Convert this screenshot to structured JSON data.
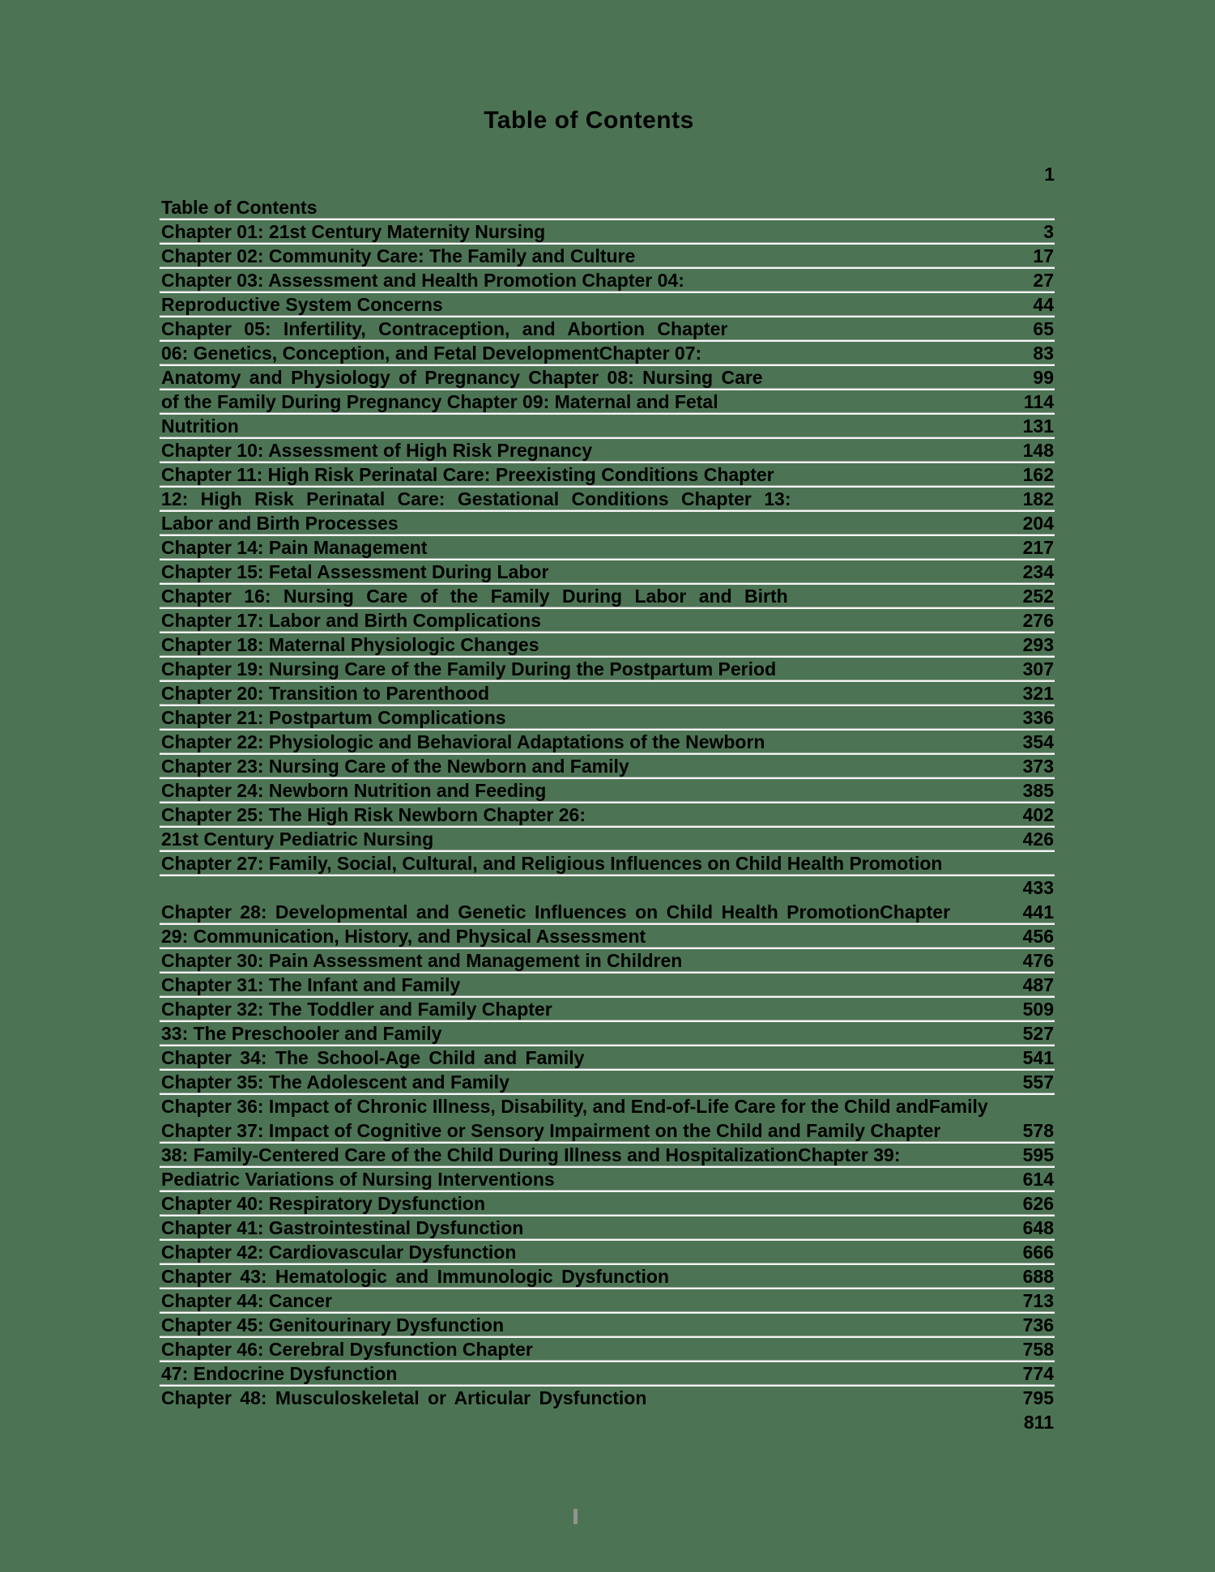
{
  "page": {
    "title": "Table of Contents",
    "top_page_number": "1"
  },
  "colors": {
    "background": "#4c7454",
    "text": "#000000",
    "rule_line": "#f5f7f5",
    "footer_marker": "#8f968f"
  },
  "toc": {
    "rows": [
      {
        "label": "Table of Contents",
        "page": "",
        "underline": true,
        "spacing": "normal"
      },
      {
        "label": "Chapter 01: 21st Century Maternity Nursing",
        "page": "3",
        "underline": true,
        "spacing": "normal"
      },
      {
        "label": "Chapter 02: Community Care: The Family and Culture",
        "page": "17",
        "underline": true,
        "spacing": "normal"
      },
      {
        "label": "Chapter 03: Assessment and Health Promotion Chapter 04:",
        "page": "27",
        "underline": true,
        "spacing": "normal"
      },
      {
        "label": "Reproductive System Concerns",
        "page": "44",
        "underline": true,
        "spacing": "normal"
      },
      {
        "label": "Chapter 05: Infertility, Contraception, and Abortion Chapter",
        "page": "65",
        "underline": true,
        "spacing": "wide"
      },
      {
        "label": "06: Genetics, Conception, and Fetal DevelopmentChapter 07:",
        "page": "83",
        "underline": true,
        "spacing": "normal"
      },
      {
        "label": "Anatomy and Physiology of Pregnancy Chapter 08: Nursing Care",
        "page": "99",
        "underline": true,
        "spacing": "medium"
      },
      {
        "label": "of the Family During Pregnancy Chapter 09: Maternal and Fetal",
        "page": "114",
        "underline": true,
        "spacing": "normal"
      },
      {
        "label": "Nutrition",
        "page": "131",
        "underline": true,
        "spacing": "normal"
      },
      {
        "label": "Chapter 10: Assessment of High Risk Pregnancy",
        "page": "148",
        "underline": true,
        "spacing": "normal"
      },
      {
        "label": "Chapter 11: High Risk Perinatal Care: Preexisting Conditions Chapter",
        "page": "162",
        "underline": true,
        "spacing": "normal"
      },
      {
        "label": "12: High Risk Perinatal Care: Gestational Conditions Chapter 13:",
        "page": "182",
        "underline": true,
        "spacing": "wide"
      },
      {
        "label": "Labor and Birth Processes",
        "page": "204",
        "underline": true,
        "spacing": "normal"
      },
      {
        "label": "Chapter 14: Pain Management",
        "page": "217",
        "underline": true,
        "spacing": "normal"
      },
      {
        "label": "Chapter 15: Fetal Assessment During Labor",
        "page": "234",
        "underline": true,
        "spacing": "normal"
      },
      {
        "label": "Chapter 16: Nursing Care of the Family During Labor and Birth",
        "page": "252",
        "underline": true,
        "spacing": "wide"
      },
      {
        "label": "Chapter 17: Labor and Birth Complications",
        "page": "276",
        "underline": true,
        "spacing": "normal"
      },
      {
        "label": "Chapter 18: Maternal Physiologic Changes",
        "page": "293",
        "underline": true,
        "spacing": "normal"
      },
      {
        "label": "Chapter 19: Nursing Care of the Family During the Postpartum Period",
        "page": "307",
        "underline": true,
        "spacing": "normal"
      },
      {
        "label": "Chapter 20: Transition to Parenthood",
        "page": "321",
        "underline": true,
        "spacing": "normal"
      },
      {
        "label": "Chapter 21: Postpartum Complications",
        "page": "336",
        "underline": true,
        "spacing": "normal"
      },
      {
        "label": "Chapter 22: Physiologic and Behavioral Adaptations of the Newborn",
        "page": "354",
        "underline": true,
        "spacing": "normal"
      },
      {
        "label": "Chapter 23: Nursing Care of the Newborn and Family",
        "page": "373",
        "underline": true,
        "spacing": "normal"
      },
      {
        "label": "Chapter 24: Newborn Nutrition and Feeding",
        "page": "385",
        "underline": true,
        "spacing": "normal"
      },
      {
        "label": "Chapter 25: The High Risk Newborn Chapter 26:",
        "page": "402",
        "underline": true,
        "spacing": "normal"
      },
      {
        "label": "21st Century Pediatric Nursing",
        "page": "426",
        "underline": true,
        "spacing": "normal"
      },
      {
        "label": "Chapter 27: Family, Social, Cultural, and Religious Influences on Child Health Promotion",
        "page": "",
        "underline": true,
        "spacing": "normal"
      },
      {
        "label": "",
        "page": "433",
        "underline": false,
        "spacing": "normal"
      },
      {
        "label": "Chapter 28: Developmental and Genetic Influences on Child Health PromotionChapter",
        "page": "441",
        "underline": true,
        "spacing": "medium"
      },
      {
        "label": "29: Communication, History, and Physical Assessment",
        "page": "456",
        "underline": true,
        "spacing": "normal"
      },
      {
        "label": "Chapter 30: Pain Assessment and Management in Children",
        "page": "476",
        "underline": true,
        "spacing": "normal"
      },
      {
        "label": "Chapter 31: The Infant and Family",
        "page": "487",
        "underline": true,
        "spacing": "normal"
      },
      {
        "label": "Chapter 32: The Toddler and Family Chapter",
        "page": "509",
        "underline": true,
        "spacing": "normal"
      },
      {
        "label": "33: The Preschooler and Family",
        "page": "527",
        "underline": true,
        "spacing": "normal"
      },
      {
        "label": "Chapter 34: The School-Age Child and Family",
        "page": "541",
        "underline": true,
        "spacing": "medium"
      },
      {
        "label": "Chapter 35: The Adolescent and Family",
        "page": "557",
        "underline": true,
        "spacing": "normal"
      },
      {
        "label": "Chapter 36: Impact of Chronic Illness, Disability, and End-of-Life Care for the Child andFamily",
        "page": "",
        "underline": false,
        "spacing": "normal"
      },
      {
        "label": "Chapter 37: Impact of Cognitive or Sensory Impairment on the Child and Family Chapter",
        "page": "578",
        "underline": true,
        "spacing": "normal"
      },
      {
        "label": "38: Family-Centered Care of the Child During Illness and HospitalizationChapter 39:",
        "page": "595",
        "underline": true,
        "spacing": "normal"
      },
      {
        "label": "Pediatric Variations of Nursing Interventions",
        "page": "614",
        "underline": true,
        "spacing": "normal"
      },
      {
        "label": "Chapter 40: Respiratory Dysfunction",
        "page": "626",
        "underline": true,
        "spacing": "normal"
      },
      {
        "label": "Chapter 41: Gastrointestinal Dysfunction",
        "page": "648",
        "underline": true,
        "spacing": "normal"
      },
      {
        "label": "Chapter 42: Cardiovascular Dysfunction",
        "page": "666",
        "underline": true,
        "spacing": "normal"
      },
      {
        "label": "Chapter 43: Hematologic and Immunologic Dysfunction",
        "page": "688",
        "underline": true,
        "spacing": "medium"
      },
      {
        "label": "Chapter 44: Cancer",
        "page": "713",
        "underline": true,
        "spacing": "normal"
      },
      {
        "label": "Chapter 45: Genitourinary Dysfunction",
        "page": "736",
        "underline": true,
        "spacing": "normal"
      },
      {
        "label": "Chapter 46: Cerebral Dysfunction Chapter",
        "page": "758",
        "underline": true,
        "spacing": "normal"
      },
      {
        "label": "47: Endocrine Dysfunction",
        "page": "774",
        "underline": true,
        "spacing": "normal"
      },
      {
        "label": "Chapter 48: Musculoskeletal or Articular Dysfunction",
        "page": "795",
        "underline": false,
        "spacing": "medium"
      },
      {
        "label": "",
        "page": "811",
        "underline": false,
        "spacing": "normal"
      }
    ]
  }
}
